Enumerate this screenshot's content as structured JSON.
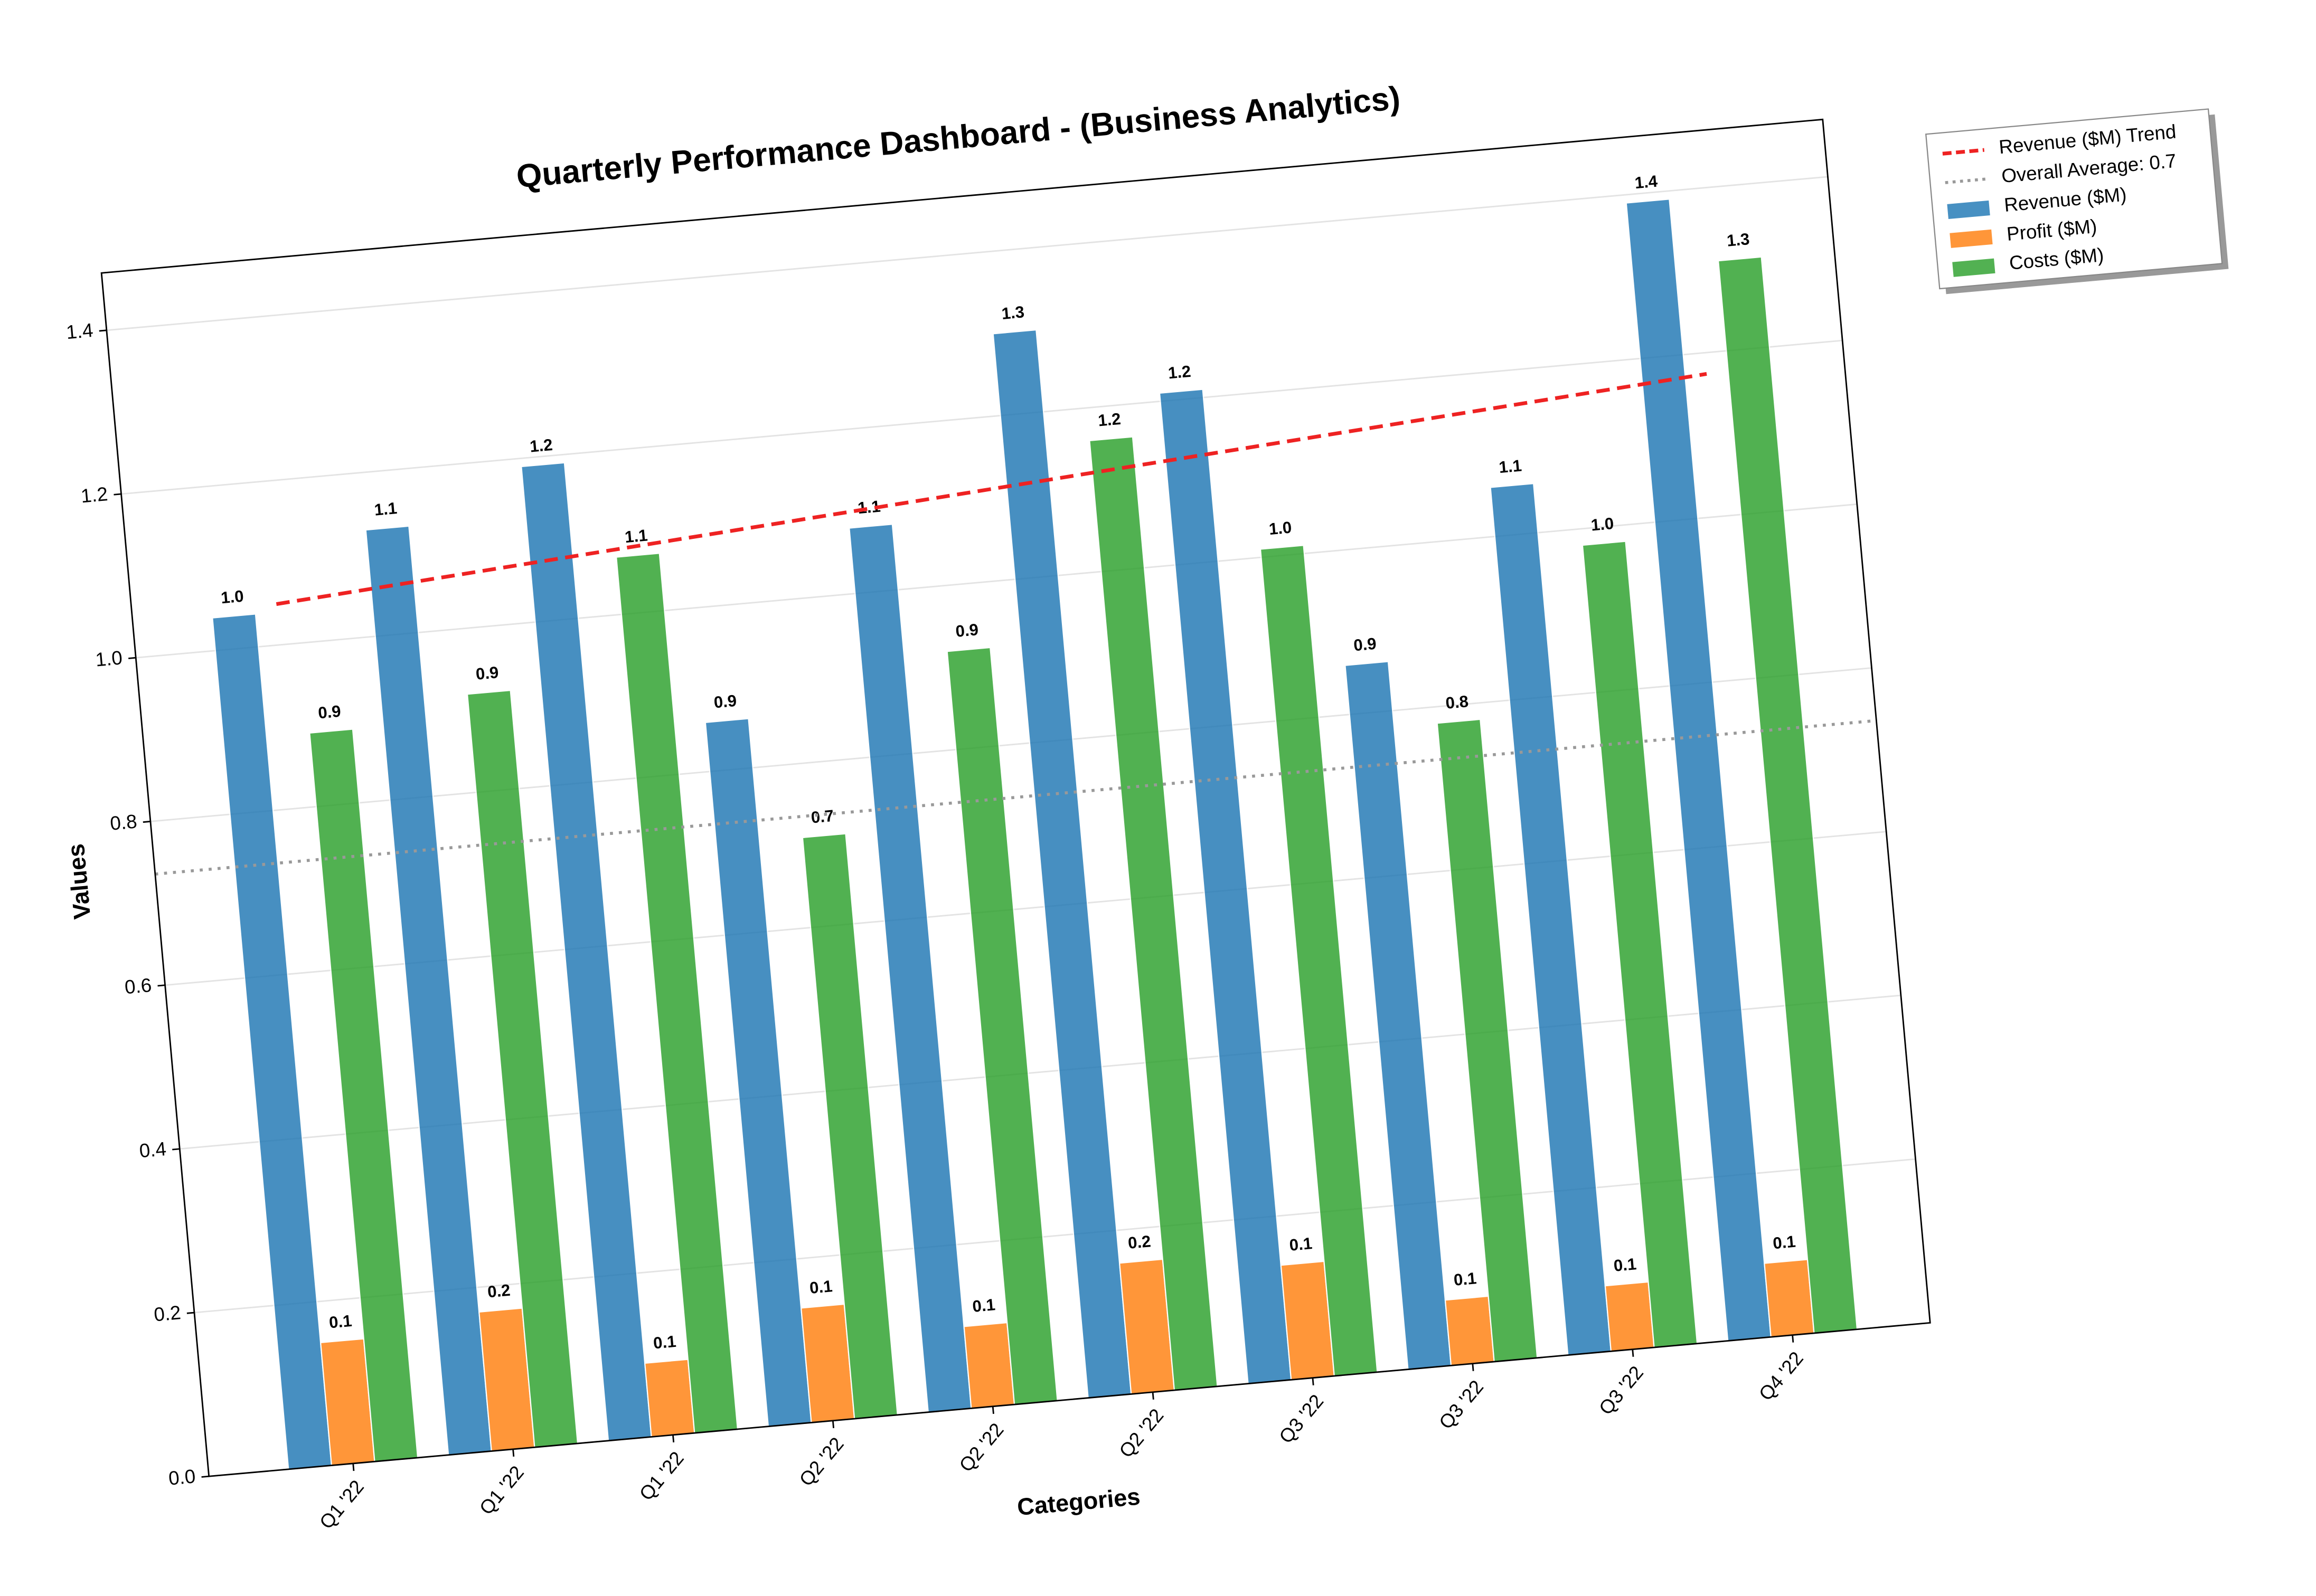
{
  "chart_data": {
    "type": "bar",
    "title": "Quarterly Performance Dashboard - (Business Analytics)",
    "x_label": "Categories",
    "y_label": "Values",
    "categories": [
      "Q1 '22",
      "Q1 '22",
      "Q1 '22",
      "Q2 '22",
      "Q2 '22",
      "Q2 '22",
      "Q3 '22",
      "Q3 '22",
      "Q3 '22",
      "Q4 '22"
    ],
    "series": [
      {
        "name": "Revenue ($M)",
        "color": "#1f77b4",
        "values": [
          1.04,
          1.13,
          1.19,
          0.86,
          1.08,
          1.3,
          1.21,
          0.86,
          1.06,
          1.39
        ],
        "value_labels": [
          "1.0",
          "1.1",
          "1.2",
          "0.9",
          "1.1",
          "1.3",
          "1.2",
          "0.9",
          "1.1",
          "1.4"
        ]
      },
      {
        "name": "Profit ($M)",
        "color": "#ff7f0e",
        "values": [
          0.15,
          0.17,
          0.09,
          0.14,
          0.1,
          0.16,
          0.14,
          0.08,
          0.08,
          0.09
        ],
        "value_labels": [
          "0.1",
          "0.2",
          "0.1",
          "0.1",
          "0.1",
          "0.2",
          "0.1",
          "0.1",
          "0.1",
          "0.1"
        ]
      },
      {
        "name": "Costs ($M)",
        "color": "#2ca02c",
        "values": [
          0.89,
          0.92,
          1.07,
          0.71,
          0.92,
          1.16,
          1.01,
          0.78,
          0.98,
          1.31
        ],
        "value_labels": [
          "0.9",
          "0.9",
          "1.1",
          "0.7",
          "0.9",
          "1.2",
          "1.0",
          "0.8",
          "1.0",
          "1.3"
        ]
      }
    ],
    "trend_line": {
      "name": "Revenue ($M) Trend",
      "color": "#ee2222"
    },
    "average_line": {
      "name": "Overall Average: 0.7",
      "color": "#999999"
    },
    "ylim": [
      0,
      1.47
    ],
    "yticks": [
      {
        "value": 0,
        "label": "0.0"
      },
      0.2,
      0.4,
      0.6,
      0.8,
      {
        "value": 1,
        "label": "1.0"
      },
      1.2,
      1.4
    ],
    "grid": true,
    "legend": "outside-upper-right"
  }
}
